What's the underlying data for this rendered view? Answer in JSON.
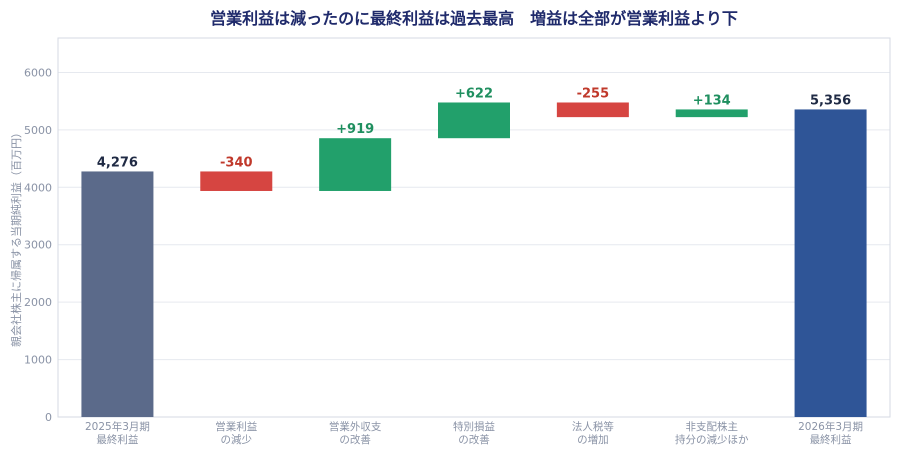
{
  "chart_data": {
    "type": "bar",
    "subtype": "waterfall",
    "title": "営業利益は減ったのに最終利益は過去最高　増益は全部が営業利益より下",
    "ylabel": "親会社株主に帰属する当期純利益（百万円）",
    "xlabel": "",
    "ylim": [
      0,
      6600
    ],
    "yticks": [
      0,
      1000,
      2000,
      3000,
      4000,
      5000,
      6000
    ],
    "grid": "horizontal",
    "categories": [
      [
        "2025年3月期",
        "最終利益"
      ],
      [
        "営業利益",
        "の減少"
      ],
      [
        "営業外収支",
        "の改善"
      ],
      [
        "特別損益",
        "の改善"
      ],
      [
        "法人税等",
        "の増加"
      ],
      [
        "非支配株主",
        "持分の減少ほか"
      ],
      [
        "2026年3月期",
        "最終利益"
      ]
    ],
    "bars": [
      {
        "kind": "total",
        "base": 0,
        "value": 4276,
        "label": "4,276"
      },
      {
        "kind": "change",
        "base": 4276,
        "value": -340,
        "label": "-340"
      },
      {
        "kind": "change",
        "base": 3936,
        "value": 919,
        "label": "+919"
      },
      {
        "kind": "change",
        "base": 4855,
        "value": 622,
        "label": "+622"
      },
      {
        "kind": "change",
        "base": 5477,
        "value": -255,
        "label": "-255"
      },
      {
        "kind": "change",
        "base": 5222,
        "value": 134,
        "label": "+134"
      },
      {
        "kind": "total",
        "base": 0,
        "value": 5356,
        "label": "5,356"
      }
    ],
    "colors": {
      "start_total": "#5b6a8a",
      "end_total": "#2f5597",
      "increase": "#22a06b",
      "decrease": "#d64541",
      "label_total": "#1f2a44",
      "label_increase": "#1f8f5f",
      "label_decrease": "#c0392b",
      "title": "#1f2a6b",
      "axis_text": "#8a93a6",
      "grid": "#e6e9ef",
      "frame": "#d5dae3"
    }
  }
}
